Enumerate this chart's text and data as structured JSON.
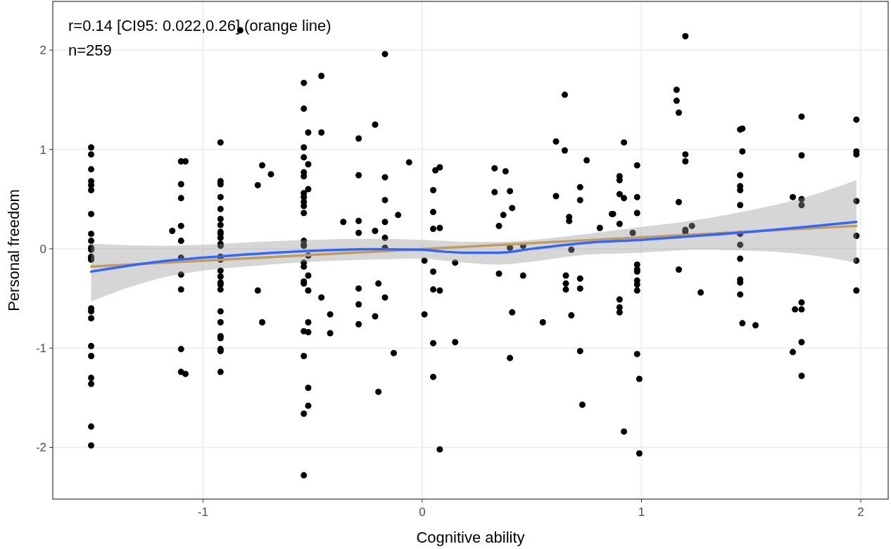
{
  "chart_data": {
    "type": "scatter",
    "xlabel": "Cognitive ability",
    "ylabel": "Personal freedom",
    "annotations": [
      "r=0.14 [CI95: 0.022,0.26] (orange line)",
      "n=259"
    ],
    "xlim": [
      -1.685,
      2.125
    ],
    "ylim": [
      -2.52,
      2.49
    ],
    "xticks": [
      -1,
      0,
      1,
      2
    ],
    "yticks": [
      -2,
      -1,
      0,
      1,
      2
    ],
    "grid": true,
    "series": [
      {
        "marker": "circle",
        "color": "#000000",
        "x": [
          -1.51,
          -1.51,
          -1.51,
          -1.51,
          -1.51,
          -1.51,
          -1.51,
          -1.51,
          -1.51,
          -1.51,
          -1.51,
          -1.51,
          -1.51,
          -1.51,
          -1.51,
          -1.51,
          -1.51,
          -1.51,
          -1.51,
          -1.51,
          -1.51,
          -1.51,
          -1.51,
          -1.1,
          -1.08,
          -1.1,
          -1.1,
          -1.1,
          -1.14,
          -1.1,
          -1.1,
          -1.1,
          -1.1,
          -1.1,
          -1.1,
          -1.08,
          -0.92,
          -0.92,
          -0.92,
          -0.92,
          -0.92,
          -0.92,
          -0.92,
          -0.92,
          -0.92,
          -0.92,
          -0.92,
          -0.92,
          -0.92,
          -0.92,
          -0.92,
          -0.92,
          -0.92,
          -0.92,
          -0.92,
          -0.92,
          -0.92,
          -0.92,
          -0.92,
          -0.92,
          -0.92,
          -0.92,
          -0.73,
          -0.69,
          -0.75,
          -0.75,
          -0.73,
          -0.54,
          -0.46,
          -0.54,
          -0.52,
          -0.46,
          -0.54,
          -0.54,
          -0.52,
          -0.54,
          -0.54,
          -0.52,
          -0.54,
          -0.54,
          -0.54,
          -0.54,
          -0.54,
          -0.54,
          -0.54,
          -0.54,
          -0.52,
          -0.54,
          -0.54,
          -0.52,
          -0.54,
          -0.54,
          -0.52,
          -0.46,
          -0.52,
          -0.54,
          -0.52,
          -0.54,
          -0.52,
          -0.52,
          -0.54,
          -0.54,
          -0.42,
          -0.42,
          -0.83,
          -0.17,
          -0.215,
          -0.29,
          -0.29,
          -0.17,
          -0.06,
          -0.17,
          -0.11,
          -0.36,
          -0.29,
          -0.17,
          -0.29,
          -0.215,
          -0.17,
          -0.17,
          0.06,
          0.08,
          0.05,
          0.05,
          0.05,
          0.08,
          0.33,
          0.38,
          0.33,
          0.4,
          0.41,
          0.37,
          0.35,
          0.65,
          0.61,
          0.65,
          0.75,
          0.72,
          0.72,
          0.61,
          0.67,
          0.67,
          0.81,
          0.865,
          0.4,
          0.46,
          0.68,
          0.01,
          0.15,
          0.05,
          0.35,
          0.46,
          0.655,
          0.72,
          0.655,
          0.655,
          0.72,
          -0.29,
          -0.2,
          -0.17,
          0.05,
          0.08,
          -0.29,
          -0.215,
          -0.29,
          0.01,
          0.41,
          0.55,
          0.68,
          -0.13,
          0.05,
          0.15,
          0.4,
          0.72,
          -0.2,
          0.05,
          0.73,
          0.08,
          1.2,
          1.16,
          1.16,
          1.17,
          1.2,
          1.2,
          1.17,
          1.2,
          1.2,
          1.23,
          0.92,
          0.9,
          0.9,
          0.98,
          0.9,
          0.92,
          0.98,
          0.87,
          0.98,
          0.9,
          0.96,
          1.45,
          1.46,
          1.46,
          1.45,
          1.45,
          1.45,
          1.45,
          1.45,
          1.45,
          1.73,
          1.73,
          1.69,
          1.73,
          1.73,
          1.98,
          1.98,
          1.98,
          1.98,
          1.98,
          0.98,
          0.98,
          0.98,
          0.98,
          0.98,
          0.98,
          0.9,
          0.9,
          0.9,
          1.17,
          1.27,
          1.45,
          1.45,
          1.45,
          1.45,
          1.46,
          1.52,
          1.73,
          1.7,
          1.73,
          1.73,
          1.69,
          1.73,
          1.98,
          1.98,
          0.98,
          0.99,
          0.92,
          0.99
        ],
        "values": [
          1.02,
          0.95,
          0.8,
          0.68,
          0.64,
          0.59,
          0.35,
          0.15,
          0.08,
          0.01,
          -0.01,
          -0.08,
          -0.1,
          -0.11,
          -0.6,
          -0.63,
          -0.7,
          -0.98,
          -1.08,
          -1.3,
          -1.36,
          -1.79,
          -1.98,
          0.88,
          0.88,
          0.65,
          0.51,
          0.23,
          0.18,
          0.08,
          -0.09,
          -0.26,
          -0.41,
          -1.01,
          -1.24,
          -1.26,
          1.07,
          0.68,
          0.65,
          0.52,
          0.4,
          0.3,
          0.24,
          0.17,
          0.15,
          0.11,
          0.05,
          0.03,
          -0.08,
          -0.11,
          -0.22,
          -0.28,
          -0.34,
          -0.36,
          -0.41,
          -0.63,
          -0.74,
          -0.88,
          -0.9,
          -1.01,
          -1.03,
          -1.24,
          0.84,
          0.75,
          0.64,
          -0.42,
          -0.74,
          1.67,
          1.74,
          1.41,
          1.17,
          1.17,
          1.02,
          0.92,
          0.85,
          0.77,
          0.73,
          0.6,
          0.56,
          0.52,
          0.47,
          0.43,
          0.36,
          0.08,
          0.04,
          0.03,
          -0.07,
          -0.14,
          -0.18,
          -0.27,
          -0.33,
          -0.35,
          -0.42,
          -0.49,
          -0.74,
          -0.83,
          -0.84,
          -1.08,
          -1.4,
          -1.58,
          -1.66,
          -2.28,
          -0.66,
          -0.85,
          2.2,
          1.96,
          1.25,
          1.11,
          0.74,
          0.72,
          0.87,
          0.49,
          0.34,
          0.27,
          0.28,
          0.27,
          0.16,
          0.18,
          0.11,
          0.01,
          0.79,
          0.82,
          0.59,
          0.37,
          0.2,
          0.21,
          0.81,
          0.78,
          0.57,
          0.58,
          0.41,
          0.34,
          0.23,
          1.55,
          1.08,
          0.99,
          0.89,
          0.62,
          0.49,
          0.53,
          0.32,
          0.28,
          0.21,
          0.35,
          0.01,
          0.03,
          -0.01,
          -0.12,
          -0.14,
          -0.23,
          -0.25,
          -0.27,
          -0.27,
          -0.3,
          -0.35,
          -0.41,
          -0.4,
          -0.4,
          -0.35,
          -0.49,
          -0.41,
          -0.42,
          -0.56,
          -0.68,
          -0.76,
          -0.66,
          -0.64,
          -0.74,
          -0.67,
          -1.05,
          -0.95,
          -0.94,
          -1.1,
          -1.03,
          -1.44,
          -1.29,
          -1.57,
          -2.02,
          2.14,
          1.6,
          1.49,
          1.37,
          0.95,
          0.88,
          0.47,
          0.19,
          0.17,
          0.23,
          1.07,
          0.73,
          0.69,
          0.84,
          0.55,
          0.51,
          0.52,
          0.35,
          0.36,
          0.25,
          0.16,
          1.2,
          1.21,
          0.98,
          0.74,
          0.63,
          0.59,
          0.44,
          0.15,
          0.04,
          1.33,
          0.94,
          0.52,
          0.5,
          0.44,
          1.3,
          0.98,
          0.95,
          0.48,
          0.13,
          -0.16,
          -0.21,
          -0.23,
          -0.32,
          -0.36,
          -0.42,
          -0.51,
          -0.59,
          -0.64,
          -0.21,
          -0.44,
          -0.1,
          -0.31,
          -0.34,
          -0.46,
          -0.75,
          -0.77,
          -0.54,
          -0.61,
          -0.61,
          -0.94,
          -1.04,
          -1.28,
          -0.12,
          -0.42,
          -1.06,
          -1.31,
          -1.84,
          -2.06
        ]
      },
      {
        "type": "line",
        "color": "#daa038",
        "x": [
          -1.51,
          1.98
        ],
        "values": [
          -0.18,
          0.23
        ]
      },
      {
        "type": "line",
        "color": "#3366ff",
        "x": [
          -1.51,
          -1.2,
          -1,
          -0.75,
          -0.5,
          -0.25,
          0,
          0.1,
          0.2,
          0.35,
          0.5,
          0.75,
          1,
          1.25,
          1.5,
          1.75,
          1.98
        ],
        "values": [
          -0.23,
          -0.13,
          -0.09,
          -0.05,
          -0.02,
          -0.005,
          -0.01,
          -0.03,
          -0.04,
          -0.04,
          0,
          0.06,
          0.09,
          0.13,
          0.17,
          0.22,
          0.27
        ],
        "lower": [
          -0.53,
          -0.3,
          -0.22,
          -0.17,
          -0.13,
          -0.11,
          -0.1,
          -0.12,
          -0.14,
          -0.16,
          -0.13,
          -0.06,
          -0.04,
          -0.01,
          -0.02,
          -0.06,
          -0.14
        ],
        "upper": [
          0.05,
          0.03,
          0.04,
          0.07,
          0.09,
          0.1,
          0.09,
          0.08,
          0.07,
          0.07,
          0.09,
          0.15,
          0.22,
          0.29,
          0.39,
          0.52,
          0.69
        ]
      }
    ]
  }
}
